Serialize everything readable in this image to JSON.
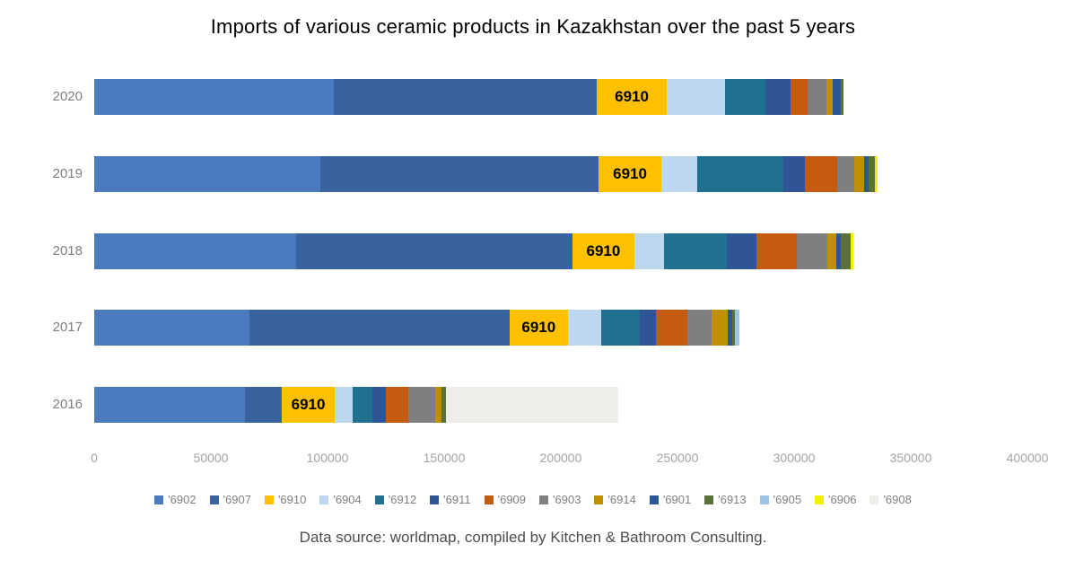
{
  "title": "Imports of various ceramic products in Kazakhstan over the past 5 years",
  "footer": "Data source: worldmap, compiled by Kitchen & Bathroom Consulting.",
  "chart_data": {
    "type": "bar",
    "orientation": "horizontal-stacked",
    "title": "Imports of various ceramic products in Kazakhstan over the past 5 years",
    "categories": [
      "2020",
      "2019",
      "2018",
      "2017",
      "2016"
    ],
    "xlim": [
      0,
      400000
    ],
    "x_ticks": [
      0,
      50000,
      100000,
      150000,
      200000,
      250000,
      300000,
      350000,
      400000
    ],
    "x_tick_labels": [
      "0",
      "50000",
      "100000",
      "150000",
      "200000",
      "250000",
      "300000",
      "350000",
      "400000"
    ],
    "grid": false,
    "legend_position": "bottom",
    "segment_label": {
      "series": "'6910",
      "text": "6910"
    },
    "series": [
      {
        "name": "'6902",
        "color": "#4B7BBE",
        "values": [
          102700,
          97000,
          86500,
          66500,
          64600
        ]
      },
      {
        "name": "'6907",
        "color": "#38639E",
        "values": [
          112700,
          119200,
          118500,
          111500,
          15800
        ]
      },
      {
        "name": "'6910",
        "color": "#FFC000",
        "values": [
          30000,
          26900,
          26500,
          25000,
          22700
        ]
      },
      {
        "name": "'6904",
        "color": "#BDD7EE",
        "values": [
          25000,
          15400,
          12700,
          14200,
          7700
        ]
      },
      {
        "name": "'6912",
        "color": "#20718F",
        "values": [
          17300,
          36900,
          26900,
          16500,
          8500
        ]
      },
      {
        "name": "'6911",
        "color": "#2F5597",
        "values": [
          10800,
          9200,
          12700,
          6900,
          5800
        ]
      },
      {
        "name": "'6909",
        "color": "#C55A11",
        "values": [
          7300,
          13800,
          17300,
          13500,
          9600
        ]
      },
      {
        "name": "'6903",
        "color": "#7F7F7F",
        "values": [
          8100,
          7300,
          13100,
          10400,
          11500
        ]
      },
      {
        "name": "'6914",
        "color": "#BF8F00",
        "values": [
          2700,
          4200,
          3800,
          6900,
          2700
        ]
      },
      {
        "name": "'6901",
        "color": "#2B5797",
        "values": [
          3500,
          1900,
          1900,
          1900,
          0
        ]
      },
      {
        "name": "'6913",
        "color": "#5A7139",
        "values": [
          1200,
          2700,
          4200,
          1500,
          1900
        ]
      },
      {
        "name": "'6905",
        "color": "#9DC3E6",
        "values": [
          0,
          0,
          0,
          1900,
          0
        ]
      },
      {
        "name": "'6906",
        "color": "#F2F200",
        "values": [
          0,
          1200,
          1200,
          0,
          0
        ]
      },
      {
        "name": "'6908",
        "color": "#EFEDEA",
        "values": [
          0,
          0,
          0,
          0,
          73800
        ]
      }
    ]
  }
}
